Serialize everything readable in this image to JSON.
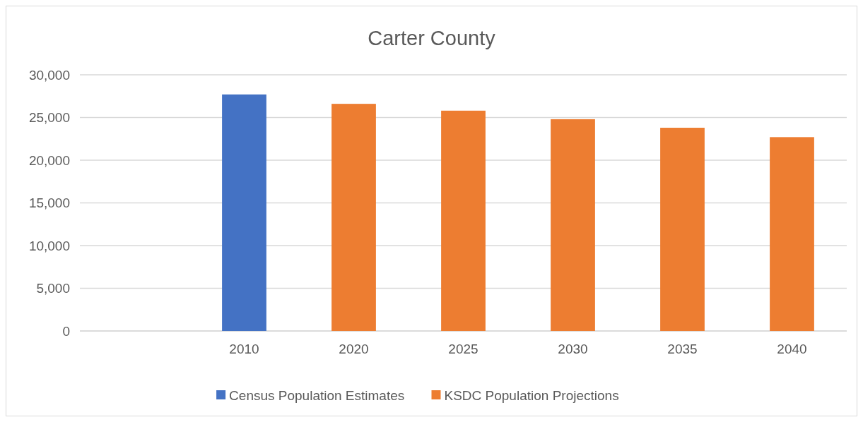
{
  "chart_data": {
    "type": "bar",
    "title": "Carter County",
    "categories": [
      null,
      "2010",
      "2020",
      "2025",
      "2030",
      "2035",
      "2040"
    ],
    "series": [
      {
        "name": "Census Population Estimates",
        "color": "#4472c4",
        "values": [
          null,
          27700,
          null,
          null,
          null,
          null,
          null
        ]
      },
      {
        "name": "KSDC Population Projections",
        "color": "#ed7d31",
        "values": [
          null,
          null,
          26600,
          25800,
          24800,
          23800,
          22700
        ]
      }
    ],
    "ylim": [
      0,
      30000
    ],
    "yticks": [
      {
        "value": 0,
        "label": "0"
      },
      {
        "value": 5000,
        "label": "5,000"
      },
      {
        "value": 10000,
        "label": "10,000"
      },
      {
        "value": 15000,
        "label": "15,000"
      },
      {
        "value": 20000,
        "label": "20,000"
      },
      {
        "value": 25000,
        "label": "25,000"
      },
      {
        "value": 30000,
        "label": "30,000"
      }
    ],
    "grid": "y",
    "legend": "bottom"
  }
}
